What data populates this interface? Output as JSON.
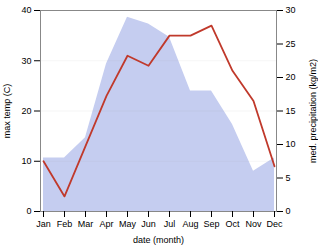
{
  "chart_data": {
    "type": "line",
    "categories": [
      "Jan",
      "Feb",
      "Mar",
      "Apr",
      "May",
      "Jun",
      "Jul",
      "Aug",
      "Sep",
      "Oct",
      "Nov",
      "Dec"
    ],
    "xlabel": "date (month)",
    "ylabel": "max temp (C)",
    "y2label": "med. precipitation (kg/m2)",
    "series": [
      {
        "type": "area",
        "axis": "y2",
        "color": "#c5cdf0",
        "values": [
          8,
          8,
          11,
          22,
          29,
          28,
          26,
          18,
          18,
          13,
          6,
          8
        ]
      },
      {
        "type": "line",
        "color": "#c0392b",
        "values": [
          10,
          3,
          13,
          23,
          31,
          29,
          35,
          35,
          37,
          28,
          22,
          9
        ]
      }
    ],
    "ylim": [
      0,
      40
    ],
    "yticks": [
      0,
      10,
      20,
      30,
      40
    ],
    "y2lim": [
      0,
      30
    ],
    "y2ticks": [
      0,
      5,
      10,
      15,
      20,
      25,
      30
    ],
    "grid": true
  }
}
